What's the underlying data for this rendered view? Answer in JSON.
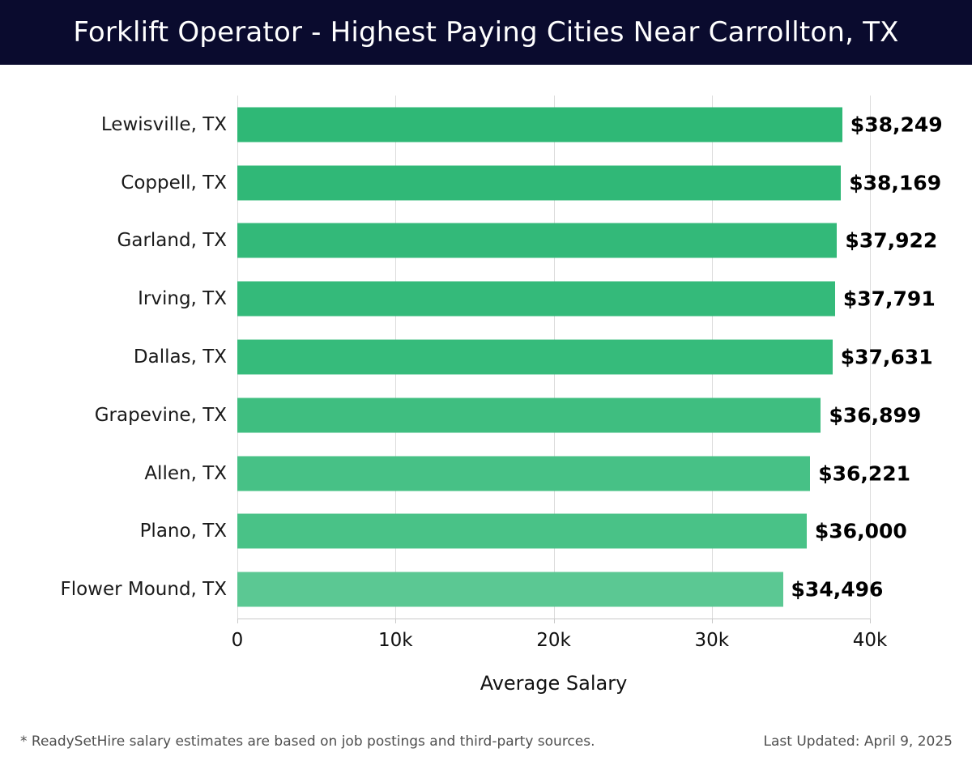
{
  "header": {
    "title": "Forklift Operator - Highest Paying Cities Near Carrollton, TX",
    "bg_color": "#0a0b2e",
    "text_color": "#ffffff"
  },
  "chart_data": {
    "type": "bar",
    "orientation": "horizontal",
    "title": "Forklift Operator - Highest Paying Cities Near Carrollton, TX",
    "categories": [
      "Lewisville, TX",
      "Coppell, TX",
      "Garland, TX",
      "Irving, TX",
      "Dallas, TX",
      "Grapevine, TX",
      "Allen, TX",
      "Plano, TX",
      "Flower Mound, TX"
    ],
    "values": [
      38249,
      38169,
      37922,
      37791,
      37631,
      36899,
      36221,
      36000,
      34496
    ],
    "value_labels": [
      "$38,249",
      "$38,169",
      "$37,922",
      "$37,791",
      "$37,631",
      "$36,899",
      "$36,221",
      "$36,000",
      "$34,496"
    ],
    "bar_colors": [
      "#2fb876",
      "#30b877",
      "#33b979",
      "#34ba7a",
      "#36bb7b",
      "#3fbe80",
      "#47c186",
      "#49c287",
      "#5bc893"
    ],
    "xlabel": "Average Salary",
    "ylabel": "",
    "xlim": [
      0,
      40000
    ],
    "x_tick_values": [
      0,
      10000,
      20000,
      30000,
      40000
    ],
    "x_tick_labels": [
      "0",
      "10k",
      "20k",
      "30k",
      "40k"
    ],
    "grid": true,
    "gridline_color": "#dcdcdc",
    "legend": "none"
  },
  "footer": {
    "note": "* ReadySetHire salary estimates are based on job postings and third-party sources.",
    "last_updated": "Last Updated: April 9, 2025"
  }
}
